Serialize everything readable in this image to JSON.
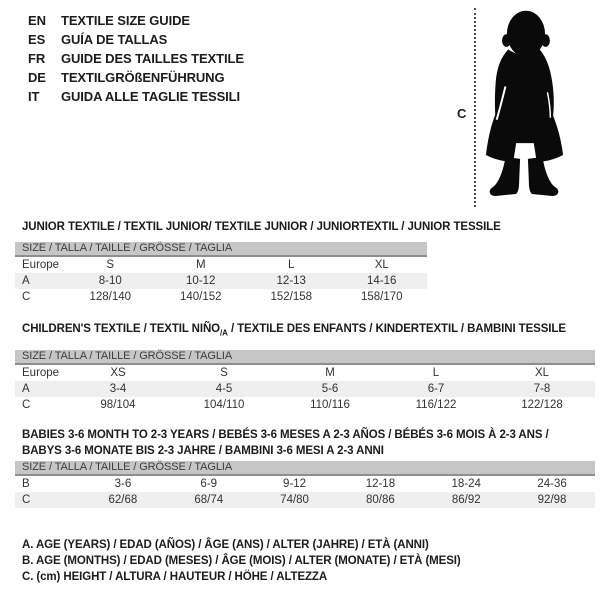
{
  "languages": [
    {
      "code": "EN",
      "label": "TEXTILE SIZE GUIDE"
    },
    {
      "code": "ES",
      "label": "GUÍA DE TALLAS"
    },
    {
      "code": "FR",
      "label": "GUIDE DES TAILLES TEXTILE"
    },
    {
      "code": "DE",
      "label": "TEXTILGRÖßENFÜHRUNG"
    },
    {
      "code": "IT",
      "label": "GUIDA ALLE TAGLIE TESSILI"
    }
  ],
  "figure": {
    "icon": "baby-silhouette",
    "height_marker_label": "C"
  },
  "colors": {
    "size_bar_bg": "#c6c6c6",
    "size_bar_border": "#8e8e8e",
    "row_alt_bg": "#efefef",
    "silhouette": "#0a0a0a"
  },
  "tables": [
    {
      "title": "JUNIOR TEXTILE / TEXTIL JUNIOR/ TEXTILE JUNIOR / JUNIORTEXTIL / JUNIOR TESSILE",
      "size_header": "SIZE / TALLA / TAILLE / GRÖSSE / TAGLIA",
      "rows": [
        {
          "label": "Europe",
          "shaded": false,
          "values": [
            "S",
            "M",
            "L",
            "XL"
          ]
        },
        {
          "label": "A",
          "shaded": true,
          "values": [
            "8-10",
            "10-12",
            "12-13",
            "14-16"
          ]
        },
        {
          "label": "C",
          "shaded": false,
          "values": [
            "128/140",
            "140/152",
            "152/158",
            "158/170"
          ]
        }
      ]
    },
    {
      "title_pre": "CHILDREN'S TEXTILE / TEXTIL NIÑO",
      "title_sub": "/A",
      "title_post": " / TEXTILE DES ENFANTS / KINDERTEXTIL / BAMBINI TESSILE",
      "size_header": "SIZE / TALLA / TAILLE / GRÖSSE / TAGLIA",
      "rows": [
        {
          "label": "Europe",
          "shaded": false,
          "values": [
            "XS",
            "S",
            "M",
            "L",
            "XL"
          ]
        },
        {
          "label": "A",
          "shaded": true,
          "values": [
            "3-4",
            "4-5",
            "5-6",
            "6-7",
            "7-8"
          ]
        },
        {
          "label": "C",
          "shaded": false,
          "values": [
            "98/104",
            "104/110",
            "110/116",
            "116/122",
            "122/128"
          ]
        }
      ]
    },
    {
      "title_line1": "BABIES 3-6 MONTH TO 2-3 YEARS / BEBÉS 3-6 MESES A 2-3 AÑOS / BÉBÉS 3-6 MOIS À 2-3 ANS /",
      "title_line2": "BABYS 3-6 MONATE BIS 2-3 JAHRE / BAMBINI 3-6 MESI A 2-3 ANNI",
      "size_header": "SIZE / TALLA / TAILLE / GRÖSSE / TAGLIA",
      "rows": [
        {
          "label": "B",
          "shaded": false,
          "values": [
            "3-6",
            "6-9",
            "9-12",
            "12-18",
            "18-24",
            "24-36"
          ]
        },
        {
          "label": "C",
          "shaded": true,
          "values": [
            "62/68",
            "68/74",
            "74/80",
            "80/86",
            "86/92",
            "92/98"
          ]
        }
      ]
    }
  ],
  "notes": [
    "A. AGE (YEARS) / EDAD (AÑOS) / ÂGE (ANS) / ALTER (JAHRE) / ETÀ (ANNI)",
    "B. AGE (MONTHS) / EDAD (MESES) / ÂGE (MOIS) / ALTER (MONATE) / ETÀ (MESI)",
    "C. (cm) HEIGHT / ALTURA / HAUTEUR / HÖHE / ALTEZZA"
  ]
}
